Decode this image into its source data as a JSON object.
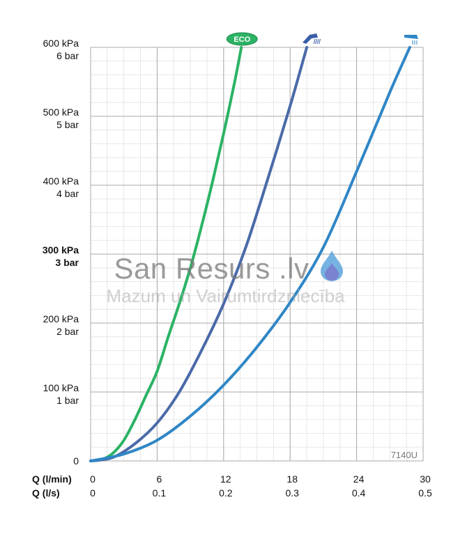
{
  "chart_data": {
    "type": "line",
    "model_code": "7140U",
    "y_ticks": [
      {
        "value": 0,
        "kpa": "0",
        "bar": ""
      },
      {
        "value": 100,
        "kpa": "100 kPa",
        "bar": "1 bar"
      },
      {
        "value": 200,
        "kpa": "200 kPa",
        "bar": "2 bar"
      },
      {
        "value": 300,
        "kpa": "300 kPa",
        "bar": "3 bar",
        "bold": true
      },
      {
        "value": 400,
        "kpa": "400 kPa",
        "bar": "4 bar"
      },
      {
        "value": 500,
        "kpa": "500 kPa",
        "bar": "5 bar"
      },
      {
        "value": 600,
        "kpa": "600 kPa",
        "bar": "6 bar"
      }
    ],
    "xlabel_lmin": "Q (l/min)",
    "xlabel_ls": "Q (l/s)",
    "x_ticks_lmin": [
      "0",
      "6",
      "12",
      "18",
      "24",
      "30"
    ],
    "x_ticks_ls": [
      "0",
      "0.1",
      "0.2",
      "0.3",
      "0.4",
      "0.5"
    ],
    "xlim": [
      0,
      30
    ],
    "ylim": [
      0,
      600
    ],
    "grid": true,
    "series": [
      {
        "name": "ECO",
        "icon": "eco-badge",
        "color": "#2bb365",
        "x": [
          0,
          1,
          2,
          3,
          4,
          5,
          6,
          7,
          8,
          9,
          10,
          11,
          12,
          13,
          13.6
        ],
        "y": [
          0,
          2,
          11,
          30,
          60,
          95,
          130,
          180,
          228,
          280,
          340,
          405,
          475,
          550,
          600
        ]
      },
      {
        "name": "",
        "icon": "hand-shower-icon",
        "color": "#4a6aa8",
        "x": [
          0,
          2,
          4,
          6,
          8,
          10,
          12,
          14,
          16,
          18,
          19.5
        ],
        "y": [
          0,
          5,
          25,
          55,
          100,
          160,
          228,
          310,
          410,
          515,
          600
        ]
      },
      {
        "name": "",
        "icon": "overhead-shower-icon",
        "color": "#2f86c6",
        "x": [
          0,
          3,
          6,
          9,
          12,
          15,
          18,
          21,
          24,
          27,
          28.8
        ],
        "y": [
          0,
          10,
          30,
          65,
          110,
          165,
          230,
          310,
          420,
          535,
          600
        ]
      }
    ]
  },
  "watermark": {
    "title": "San Resurs .lv",
    "subtitle": "Mazum un Vairumtirdzniecība"
  }
}
